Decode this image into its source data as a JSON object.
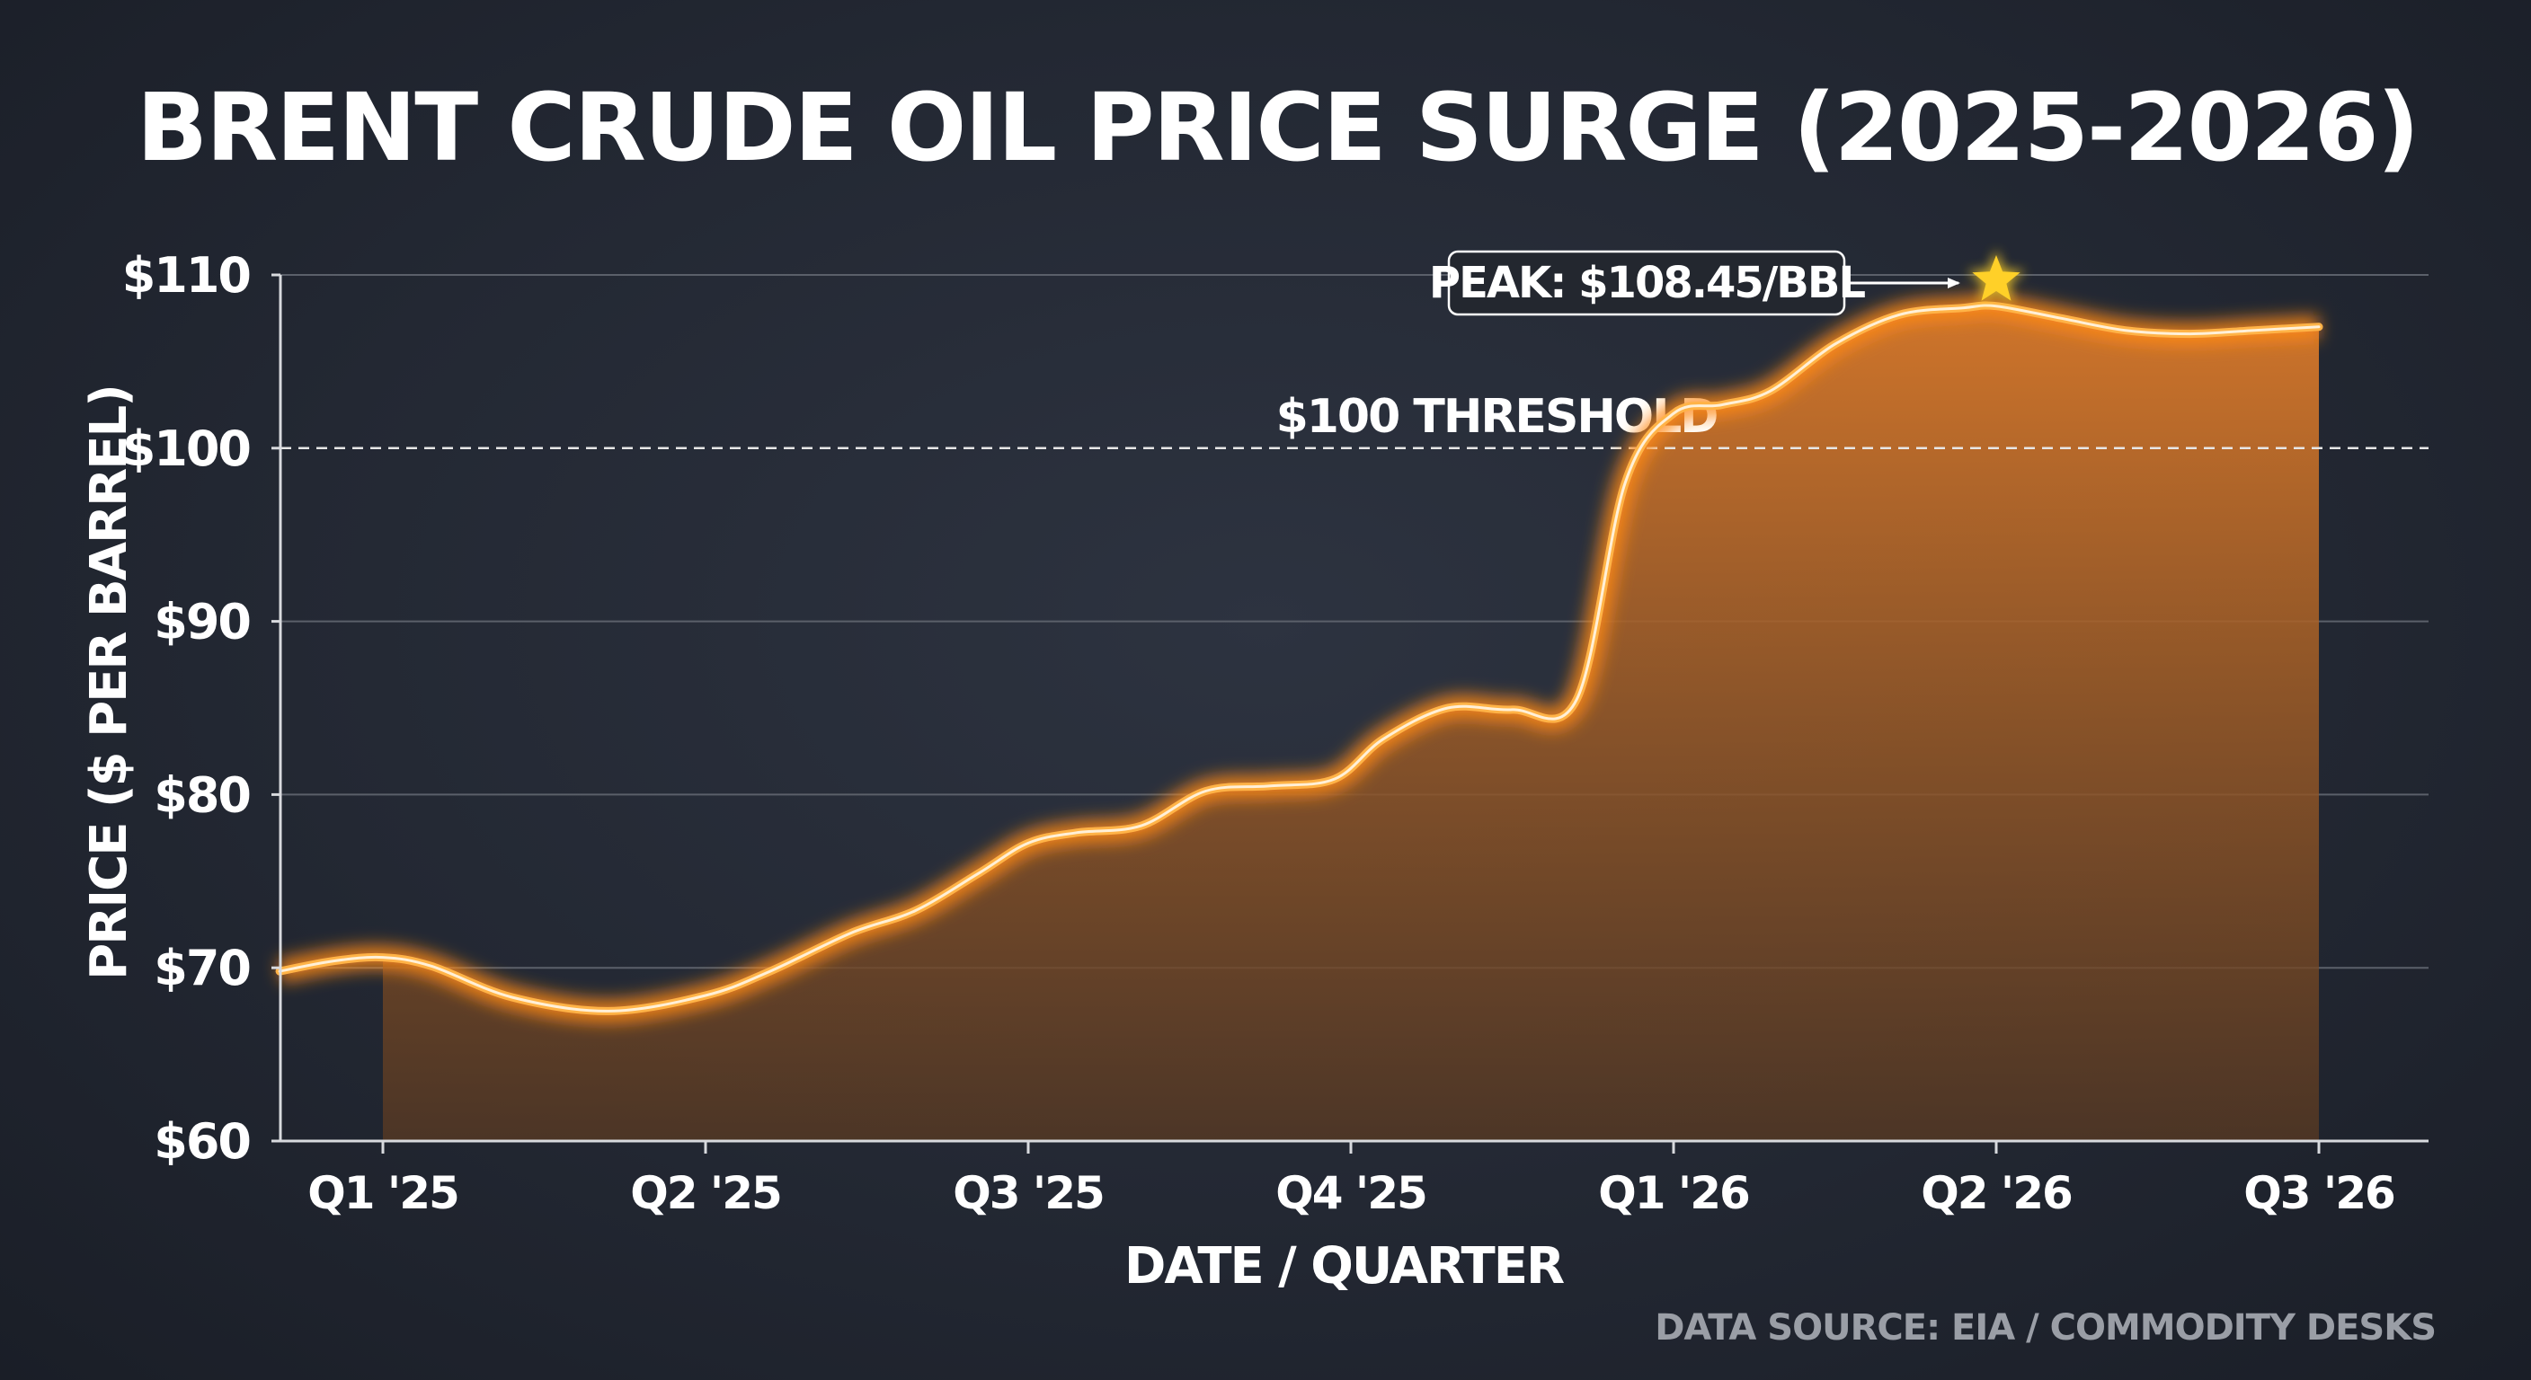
{
  "chart_data": {
    "type": "area",
    "title": "BRENT CRUDE OIL PRICE SURGE (2025-2026)",
    "xlabel": "DATE / QUARTER",
    "ylabel": "PRICE ($ PER BARREL)",
    "ylim": [
      60,
      110
    ],
    "xlim": [
      -0.32,
      6.35
    ],
    "yticks": [
      {
        "value": 60,
        "label": "$60"
      },
      {
        "value": 70,
        "label": "$70"
      },
      {
        "value": 80,
        "label": "$80"
      },
      {
        "value": 90,
        "label": "$90"
      },
      {
        "value": 100,
        "label": "$100"
      },
      {
        "value": 110,
        "label": "$110"
      }
    ],
    "xticks": [
      {
        "value": 0,
        "label": "Q1 '25"
      },
      {
        "value": 1,
        "label": "Q2 '25"
      },
      {
        "value": 2,
        "label": "Q3 '25"
      },
      {
        "value": 3,
        "label": "Q4 '25"
      },
      {
        "value": 4,
        "label": "Q1 '26"
      },
      {
        "value": 5,
        "label": "Q2 '26"
      },
      {
        "value": 6,
        "label": "Q3 '26"
      }
    ],
    "grid": true,
    "series": [
      {
        "x": [
          -0.32,
          -0.15,
          0.0,
          0.15,
          0.4,
          0.7,
          1.0,
          1.2,
          1.45,
          1.65,
          1.85,
          2.0,
          2.15,
          2.35,
          2.55,
          2.75,
          2.95,
          3.1,
          3.3,
          3.5,
          3.7,
          3.85,
          4.0,
          4.15,
          4.3,
          4.5,
          4.7,
          4.9,
          5.0,
          5.2,
          5.4,
          5.6,
          5.8,
          6.0
        ],
        "values": [
          69.8,
          70.4,
          70.6,
          70.1,
          68.3,
          67.5,
          68.4,
          69.8,
          72.0,
          73.3,
          75.5,
          77.2,
          77.8,
          78.2,
          80.2,
          80.5,
          80.9,
          83.2,
          85.0,
          84.9,
          85.5,
          98.0,
          102.0,
          102.5,
          103.3,
          106.0,
          107.7,
          108.1,
          108.2,
          107.5,
          106.8,
          106.6,
          106.8,
          107.0
        ]
      }
    ],
    "fill_from_x": 0,
    "threshold": {
      "value": 100,
      "label": "$100 THRESHOLD"
    },
    "peak": {
      "x": 5.0,
      "value": 108.45,
      "label": "PEAK: $108.45/BBL"
    },
    "source": "DATA SOURCE: EIA / COMMODITY DESKS",
    "colors": {
      "line": "#ffb347",
      "glow": "#ff8a1a",
      "fill_top": "#d9792a",
      "fill_bottom": "#5a3a22",
      "star": "#ffd028",
      "grid": "#5b606a",
      "axis": "#d8dade"
    }
  }
}
